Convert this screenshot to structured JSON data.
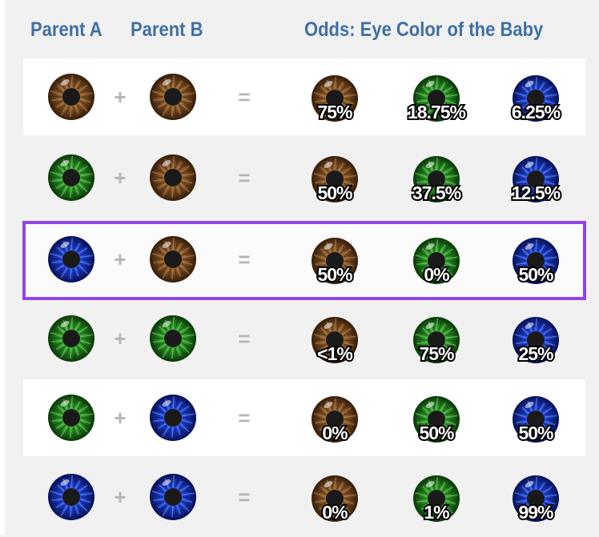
{
  "header": {
    "parent_a": "Parent A",
    "parent_b": "Parent B",
    "odds": "Odds: Eye Color of the Baby"
  },
  "symbols": {
    "plus": "+",
    "equals": "="
  },
  "colors": {
    "brown": "#8a5a2b",
    "green": "#2f9a2a",
    "blue": "#1f40d0",
    "highlight": "#8f46e8",
    "header_text": "#3f6fa3"
  },
  "rows": [
    {
      "parent_a": "brown",
      "parent_b": "brown",
      "odds": {
        "brown": "75%",
        "green": "18.75%",
        "blue": "6.25%"
      },
      "highlighted": false
    },
    {
      "parent_a": "green",
      "parent_b": "brown",
      "odds": {
        "brown": "50%",
        "green": "37.5%",
        "blue": "12.5%"
      },
      "highlighted": false
    },
    {
      "parent_a": "blue",
      "parent_b": "brown",
      "odds": {
        "brown": "50%",
        "green": "0%",
        "blue": "50%"
      },
      "highlighted": true
    },
    {
      "parent_a": "green",
      "parent_b": "green",
      "odds": {
        "brown": "<1%",
        "green": "75%",
        "blue": "25%"
      },
      "highlighted": false
    },
    {
      "parent_a": "green",
      "parent_b": "blue",
      "odds": {
        "brown": "0%",
        "green": "50%",
        "blue": "50%"
      },
      "highlighted": false
    },
    {
      "parent_a": "blue",
      "parent_b": "blue",
      "odds": {
        "brown": "0%",
        "green": "1%",
        "blue": "99%"
      },
      "highlighted": false
    }
  ]
}
